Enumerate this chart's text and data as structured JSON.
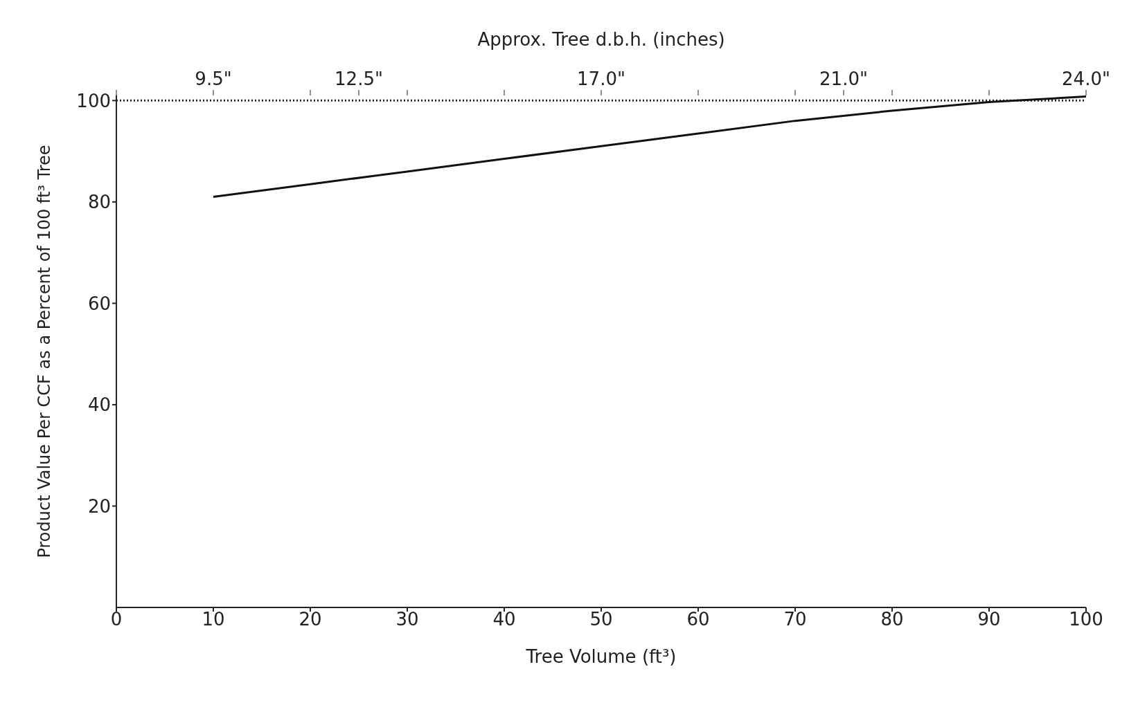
{
  "chart_data": {
    "type": "line",
    "xlabel": "Tree Volume (ft³)",
    "ylabel": "Product Value Per CCF as a Percent of 100 ft³ Tree",
    "x2label": "Approx. Tree  d.b.h. (inches)",
    "x": [
      10,
      20,
      30,
      40,
      50,
      60,
      70,
      80,
      90,
      100
    ],
    "series": [
      {
        "color": "#111111",
        "values": [
          81,
          83.5,
          86,
          88.5,
          91,
          93.5,
          96,
          98,
          99.7,
          100.8
        ]
      }
    ],
    "xlim": [
      0,
      100
    ],
    "xticks": [
      0,
      10,
      20,
      30,
      40,
      50,
      60,
      70,
      80,
      90,
      100
    ],
    "annotations": [
      {
        "text": "9.5\"",
        "x": 10,
        "y": 100
      },
      {
        "text": "12.5\"",
        "x": 25,
        "y": 100
      },
      {
        "text": "17.0\"",
        "x": 50,
        "y": 100
      },
      {
        "text": "21.0\"",
        "x": 75,
        "y": 100
      },
      {
        "text": "24.0\"",
        "x": 100,
        "y": 100
      }
    ],
    "ylim": [
      0,
      101
    ],
    "yticks": [
      20,
      40,
      60,
      80,
      100
    ],
    "ref_lines": [
      {
        "axis": "y",
        "value": 100,
        "line_style": "dotted",
        "color": "#222222"
      }
    ],
    "grid": false,
    "legend": false,
    "marker": "none",
    "line_style": "solid"
  }
}
